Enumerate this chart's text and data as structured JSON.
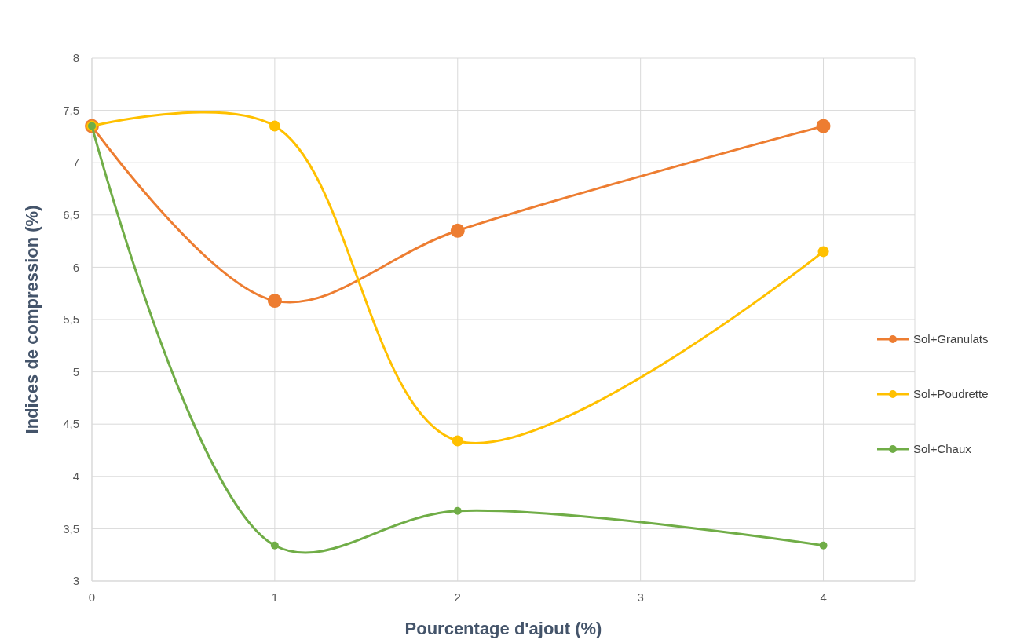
{
  "chart_data": {
    "type": "line",
    "xlabel": "Pourcentage d'ajout (%)",
    "ylabel": "Indices de compression (%)",
    "x": [
      0,
      1,
      2,
      4
    ],
    "series": [
      {
        "name": "Sol+Granulats",
        "color": "#ed7d31",
        "values": [
          7.35,
          5.68,
          6.35,
          7.35
        ]
      },
      {
        "name": "Sol+Poudrette",
        "color": "#ffc000",
        "values": [
          7.35,
          7.35,
          4.34,
          6.15
        ]
      },
      {
        "name": "Sol+Chaux",
        "color": "#70ad47",
        "values": [
          7.35,
          3.34,
          3.67,
          3.34
        ]
      }
    ],
    "xlim": [
      0,
      4.5
    ],
    "xticks": [
      0,
      1,
      2,
      3,
      4
    ],
    "ylim": [
      3,
      8
    ],
    "yticks": [
      3,
      {
        "value": 3.5,
        "label": "3,5"
      },
      4,
      {
        "value": 4.5,
        "label": "4,5"
      },
      5,
      {
        "value": 5.5,
        "label": "5,5"
      },
      6,
      {
        "value": 6.5,
        "label": "6,5"
      },
      7,
      {
        "value": 7.5,
        "label": "7,5"
      },
      8
    ],
    "grid": true,
    "legend": "right",
    "marker": "circle",
    "line_style": "solid"
  }
}
